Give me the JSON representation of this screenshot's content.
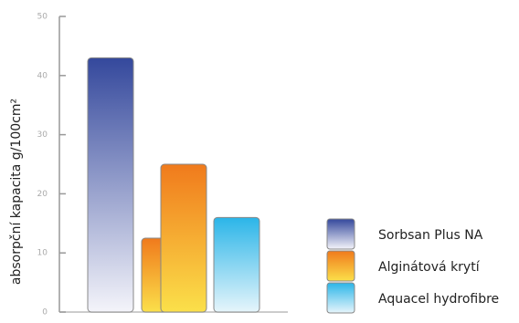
{
  "chart_data": {
    "type": "bar",
    "y_label": "absorpční kapacita g/100cm²",
    "categories": [
      null,
      null,
      null,
      null
    ],
    "series": [
      {
        "name": "Sorbsan Plus NA",
        "colors": [
          "#34489c",
          "#f4f4fa"
        ],
        "values": [
          43,
          null,
          null,
          null
        ]
      },
      {
        "name": "Alginátová krytí",
        "colors": [
          "#f07a1c",
          "#fbe04a"
        ],
        "values": [
          null,
          12.5,
          25,
          null
        ]
      },
      {
        "name": "Aquacel hydrofibre",
        "colors": [
          "#2bb5e8",
          "#e6f5fb"
        ],
        "values": [
          null,
          null,
          null,
          16
        ]
      }
    ],
    "ylim": [
      0,
      50
    ],
    "yticks": [
      0,
      10,
      20,
      30,
      40,
      50
    ],
    "grid": false,
    "legend": "right"
  }
}
